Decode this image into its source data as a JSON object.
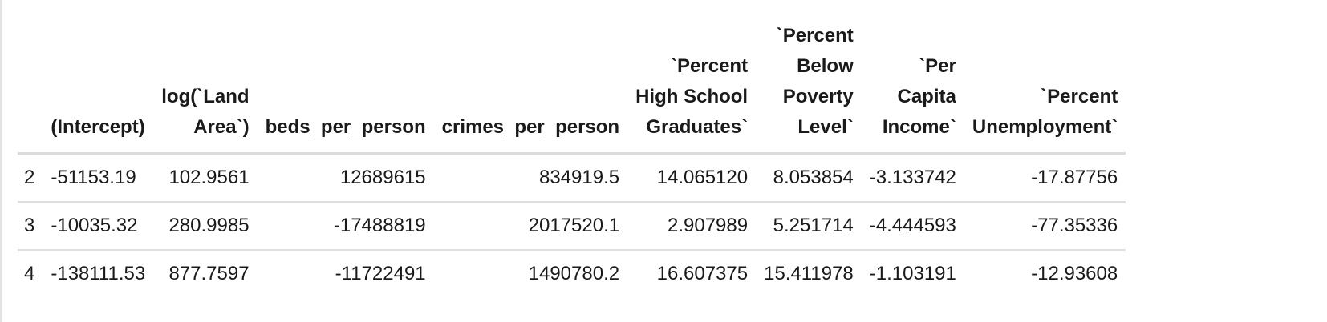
{
  "table": {
    "headers": [
      [
        ""
      ],
      [
        "(Intercept)"
      ],
      [
        "log(`Land",
        "Area`)"
      ],
      [
        "beds_per_person"
      ],
      [
        "crimes_per_person"
      ],
      [
        "`Percent",
        "High School",
        "Graduates`"
      ],
      [
        "`Percent",
        "Below",
        "Poverty",
        "Level`"
      ],
      [
        "`Per",
        "Capita",
        "Income`"
      ],
      [
        "`Percent",
        "Unemployment`"
      ]
    ],
    "rows": [
      [
        "2",
        "-51153.19",
        "102.9561",
        "12689615",
        "834919.5",
        "14.065120",
        "8.053854",
        "-3.133742",
        "-17.87756"
      ],
      [
        "3",
        "-10035.32",
        "280.9985",
        "-17488819",
        "2017520.1",
        "2.907989",
        "5.251714",
        "-4.444593",
        "-77.35336"
      ],
      [
        "4",
        "-138111.53",
        "877.7597",
        "-11722491",
        "1490780.2",
        "16.607375",
        "15.411978",
        "-1.103191",
        "-12.93608"
      ]
    ]
  }
}
